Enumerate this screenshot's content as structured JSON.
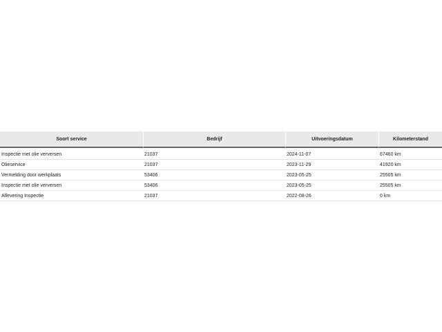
{
  "table": {
    "headers": [
      "Soort service",
      "Bedrijf",
      "Uitvoeringsdatum",
      "Kilometerstand"
    ],
    "rows": [
      [
        "Inspectie met olie verversen",
        "21037",
        "2024-11-07",
        "67460 km"
      ],
      [
        "Olieservice",
        "21037",
        "2023-11-29",
        "41920 km"
      ],
      [
        "Vermelding door werkplaats",
        "53406",
        "2023-05-25",
        "25505 km"
      ],
      [
        "Inspectie met olie verversen",
        "53406",
        "2023-05-25",
        "25505 km"
      ],
      [
        "Aflevering Inspectie",
        "21037",
        "2022-08-26",
        "0 km"
      ]
    ]
  }
}
